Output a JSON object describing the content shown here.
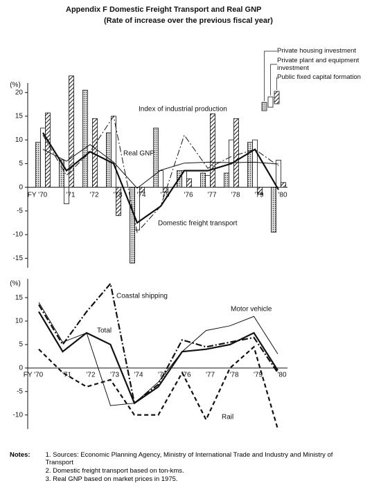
{
  "chart_data": [
    {
      "type": "combo",
      "title": "Appendix F    Domestic Freight Transport and Real GNP",
      "subtitle": "(Rate of increase over the previous fiscal year)",
      "y_label": "(%)",
      "categories": [
        "FY '70",
        "'71",
        "'72",
        "'73",
        "'74",
        "'75",
        "'76",
        "'77",
        "'78",
        "'79",
        "'80"
      ],
      "ylim": [
        -17,
        22
      ],
      "yticks": [
        20,
        15,
        10,
        5,
        0,
        -5,
        -10,
        -15
      ],
      "series": [
        {
          "name": "Private housing investment",
          "kind": "bar",
          "pattern": "dots",
          "values": [
            9.5,
            5.8,
            20.5,
            11.5,
            -16,
            12.5,
            3.5,
            3,
            3,
            9.5,
            -9.5
          ]
        },
        {
          "name": "Private plant and equipment investment",
          "kind": "bar",
          "pattern": "none",
          "values": [
            12.5,
            -3.5,
            7.5,
            15,
            -9,
            3.5,
            3.5,
            2.5,
            10,
            10,
            5.7
          ]
        },
        {
          "name": "Public fixed capital formation",
          "kind": "bar",
          "pattern": "hatch",
          "values": [
            15.7,
            23.5,
            14.5,
            -6,
            -1,
            -1,
            1.8,
            15.5,
            14.5,
            -1.5,
            1
          ]
        },
        {
          "name": "Index of industrial production",
          "kind": "line",
          "style": "dashdot",
          "weight": "thin",
          "values": [
            11,
            2.5,
            7.5,
            15,
            -9.5,
            -4,
            11,
            4,
            6.5,
            8,
            4.5
          ]
        },
        {
          "name": "Real GNP",
          "kind": "line",
          "style": "solid",
          "weight": "thin",
          "values": [
            8,
            5.5,
            9,
            5.3,
            -0.2,
            3.6,
            5.1,
            5.3,
            5.2,
            5.3,
            4.9
          ]
        },
        {
          "name": "Domestic freight transport",
          "kind": "line",
          "style": "solid",
          "weight": "thick",
          "values": [
            11.5,
            3.5,
            7.5,
            5,
            -7.5,
            -4,
            3.5,
            3.5,
            5,
            8,
            -0.5
          ]
        }
      ]
    },
    {
      "type": "line",
      "y_label": "(%)",
      "categories": [
        "FY '70",
        "'71",
        "'72",
        "'73",
        "'74",
        "'75",
        "'76",
        "'77",
        "'78",
        "'79",
        "'80"
      ],
      "ylim": [
        -13,
        19
      ],
      "yticks": [
        15,
        10,
        5,
        0,
        -5,
        -10
      ],
      "series": [
        {
          "name": "Coastal shipping",
          "kind": "line",
          "style": "dashdot",
          "weight": "thick",
          "values": [
            13.5,
            5,
            12,
            18,
            -7.5,
            -3.5,
            6,
            4.5,
            5.5,
            6.5,
            -1
          ]
        },
        {
          "name": "Motor vehicle",
          "kind": "line",
          "style": "solid",
          "weight": "thin",
          "values": [
            14,
            5.5,
            7.5,
            -8,
            -7.5,
            -3,
            3.5,
            8,
            9,
            11,
            3
          ]
        },
        {
          "name": "Total",
          "kind": "line",
          "style": "solid",
          "weight": "thick",
          "values": [
            12,
            3.5,
            7.5,
            5,
            -7.5,
            -4,
            3.5,
            4,
            5,
            7.5,
            -0.5
          ]
        },
        {
          "name": "Rail",
          "kind": "line",
          "style": "dashed",
          "weight": "thick",
          "values": [
            4,
            -1,
            -4,
            -2.5,
            -10,
            -10,
            -1,
            -11,
            0,
            4.5,
            -13
          ]
        }
      ]
    }
  ],
  "notes": {
    "label": "Notes:",
    "items": [
      "1. Sources: Economic Planning Agency, Ministry of International Trade and Industry and Ministry of Transport",
      "2. Domestic freight transport based on ton-kms.",
      "3. Real GNP based on market prices in 1975."
    ]
  }
}
